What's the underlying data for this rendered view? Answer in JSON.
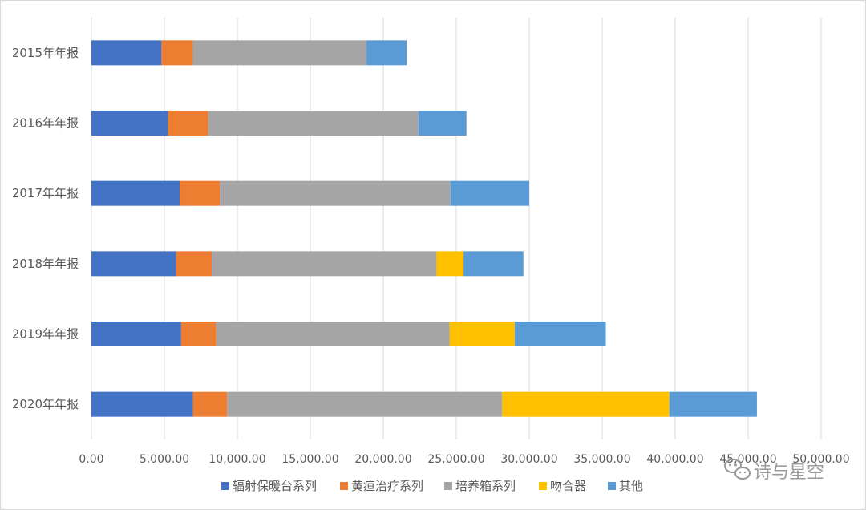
{
  "chart_data": {
    "type": "bar",
    "orientation": "horizontal",
    "stacked": true,
    "categories": [
      "2015年年报",
      "2016年年报",
      "2017年年报",
      "2018年年报",
      "2019年年报",
      "2020年年报"
    ],
    "series": [
      {
        "name": "辐射保暖台系列",
        "color": "#4472C4",
        "values": [
          4800,
          5250,
          6050,
          5800,
          6150,
          6950
        ]
      },
      {
        "name": "黄疸治疗系列",
        "color": "#ED7D31",
        "values": [
          2150,
          2750,
          2750,
          2450,
          2400,
          2350
        ]
      },
      {
        "name": "培养箱系列",
        "color": "#A5A5A5",
        "values": [
          11900,
          14400,
          15800,
          15400,
          16000,
          18850
        ]
      },
      {
        "name": "吻合器",
        "color": "#FFC000",
        "values": [
          0,
          0,
          0,
          1850,
          4450,
          11450
        ]
      },
      {
        "name": "其他",
        "color": "#5B9BD5",
        "values": [
          2750,
          3300,
          5400,
          4100,
          6250,
          6000
        ]
      }
    ],
    "xlim": [
      0,
      50000
    ],
    "xticks": [
      "0.00",
      "5,000.00",
      "10,000.00",
      "15,000.00",
      "20,000.00",
      "25,000.00",
      "30,000.00",
      "35,000.00",
      "40,000.00",
      "45,000.00",
      "50,000.00"
    ],
    "grid": true,
    "legend_position": "bottom"
  },
  "watermark": {
    "text": "诗与星空",
    "icon": "wechat-icon"
  }
}
